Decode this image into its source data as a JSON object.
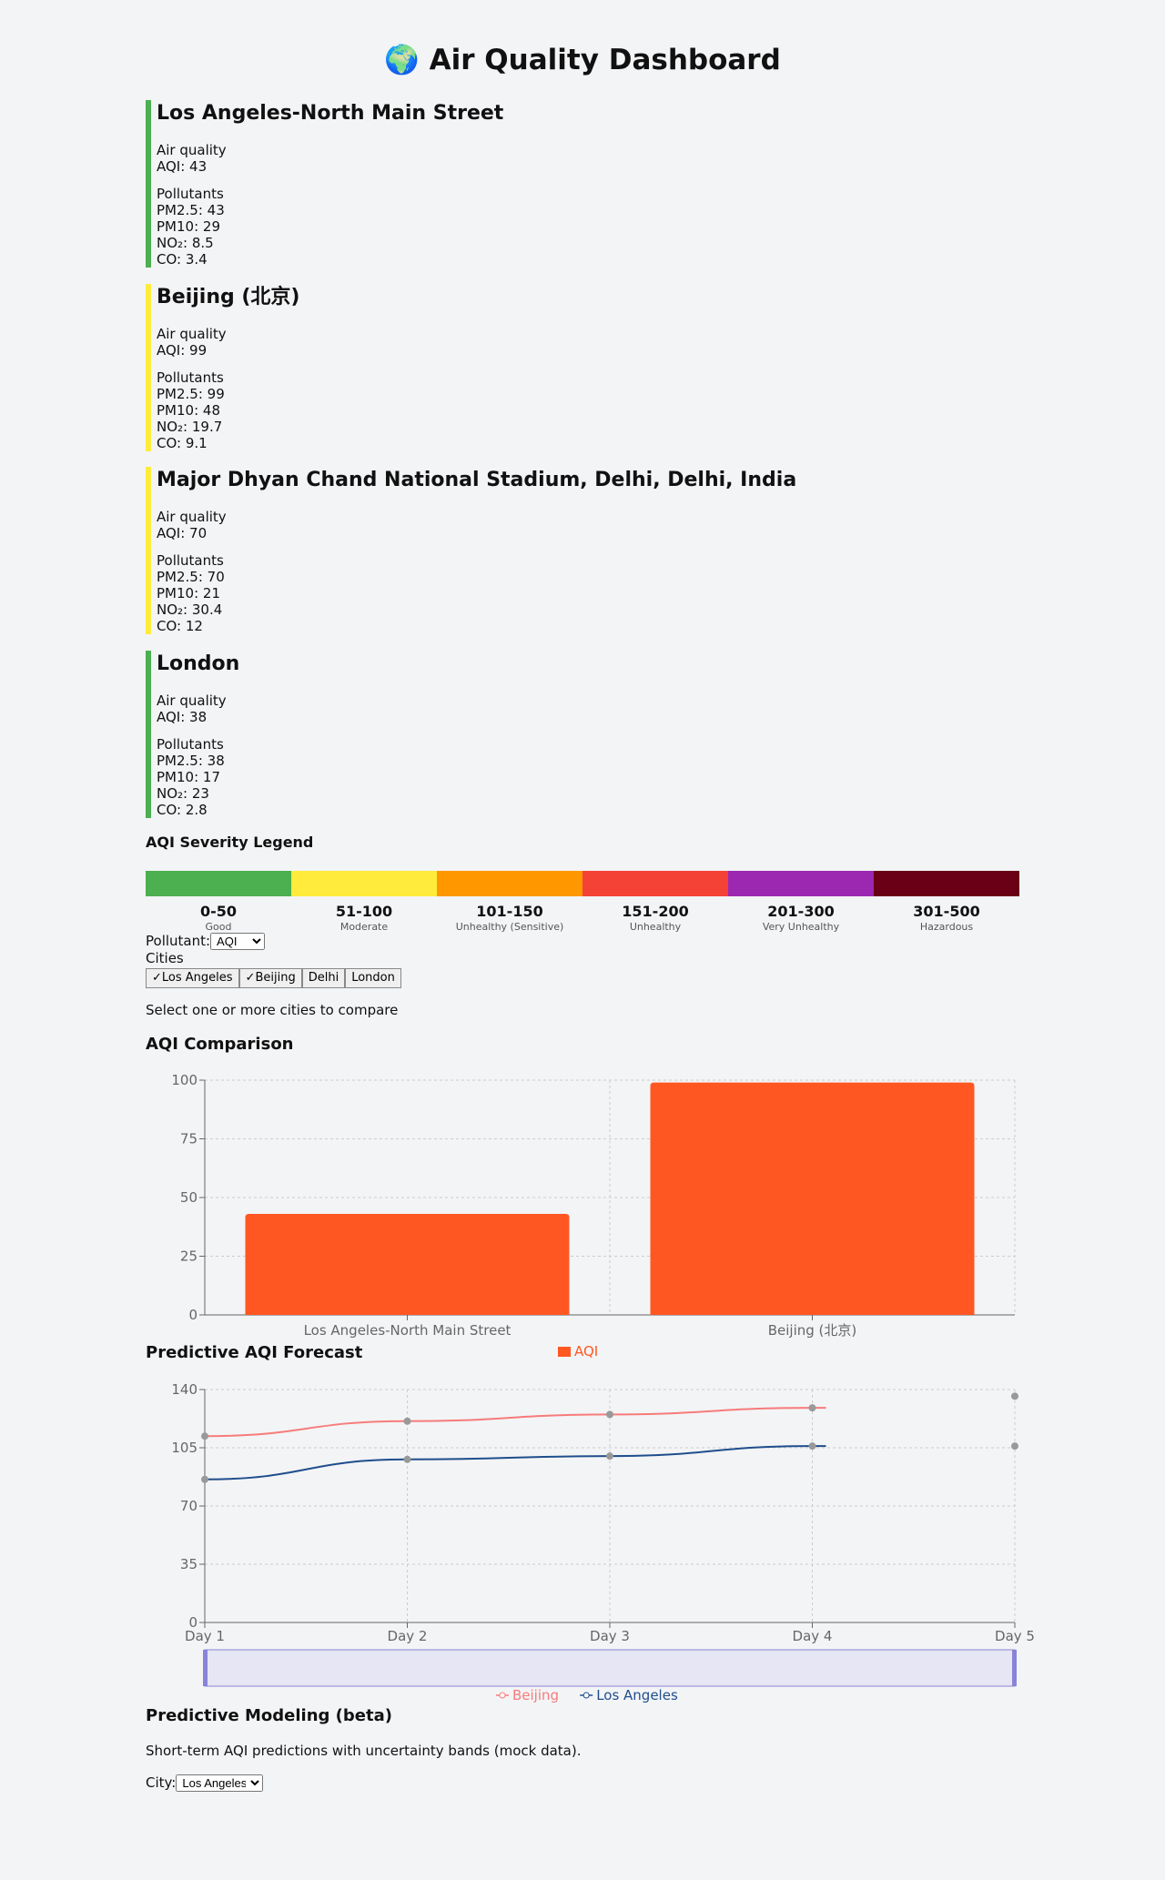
{
  "header": {
    "globe_icon": "🌍",
    "title": "Air Quality Dashboard"
  },
  "cities": [
    {
      "name": "Los Angeles-North Main Street",
      "border_color": "#4caf50",
      "air_quality_label": "Air quality",
      "aqi_text": "AQI: 43",
      "pollutants_label": "Pollutants",
      "pm25": "PM2.5: 43",
      "pm10": "PM10: 29",
      "no2": "NO₂: 8.5",
      "co": "CO: 3.4"
    },
    {
      "name": "Beijing (北京)",
      "border_color": "#ffeb3b",
      "air_quality_label": "Air quality",
      "aqi_text": "AQI: 99",
      "pollutants_label": "Pollutants",
      "pm25": "PM2.5: 99",
      "pm10": "PM10: 48",
      "no2": "NO₂: 19.7",
      "co": "CO: 9.1"
    },
    {
      "name": "Major Dhyan Chand National Stadium, Delhi, Delhi, India",
      "border_color": "#ffeb3b",
      "air_quality_label": "Air quality",
      "aqi_text": "AQI: 70",
      "pollutants_label": "Pollutants",
      "pm25": "PM2.5: 70",
      "pm10": "PM10: 21",
      "no2": "NO₂: 30.4",
      "co": "CO: 12"
    },
    {
      "name": "London",
      "border_color": "#4caf50",
      "air_quality_label": "Air quality",
      "aqi_text": "AQI: 38",
      "pollutants_label": "Pollutants",
      "pm25": "PM2.5: 38",
      "pm10": "PM10: 17",
      "no2": "NO₂: 23",
      "co": "CO: 2.8"
    }
  ],
  "legend": {
    "title": "AQI Severity Legend",
    "bands": [
      {
        "range": "0-50",
        "category": "Good",
        "color": "#4caf50"
      },
      {
        "range": "51-100",
        "category": "Moderate",
        "color": "#ffeb3b"
      },
      {
        "range": "101-150",
        "category": "Unhealthy (Sensitive)",
        "color": "#ff9800"
      },
      {
        "range": "151-200",
        "category": "Unhealthy",
        "color": "#f44336"
      },
      {
        "range": "201-300",
        "category": "Very Unhealthy",
        "color": "#9c27b0"
      },
      {
        "range": "301-500",
        "category": "Hazardous",
        "color": "#6a0016"
      }
    ]
  },
  "controls": {
    "pollutant_label": "Pollutant:",
    "pollutant_selected": "AQI",
    "cities_label": "Cities",
    "city_chips": [
      {
        "label": "Los Angeles",
        "checked": true
      },
      {
        "label": "Beijing",
        "checked": true
      },
      {
        "label": "Delhi",
        "checked": false
      },
      {
        "label": "London",
        "checked": false
      }
    ],
    "hint": "Select one or more cities to compare"
  },
  "comparison": {
    "title": "AQI Comparison",
    "legend_label": "AQI",
    "bar_color": "#ff5722"
  },
  "forecast": {
    "title": "Predictive AQI Forecast",
    "series_colors": {
      "Beijing": "#f77b7b",
      "Los Angeles": "#1f4e8c"
    }
  },
  "modeling": {
    "title": "Predictive Modeling (beta)",
    "description": "Short-term AQI predictions with uncertainty bands (mock data).",
    "city_label": "City:",
    "city_selected": "Los Angeles"
  },
  "chart_data": [
    {
      "type": "bar",
      "title": "AQI Comparison",
      "categories": [
        "Los Angeles-North Main Street",
        "Beijing (北京)"
      ],
      "series": [
        {
          "name": "AQI",
          "values": [
            43,
            99
          ]
        }
      ],
      "yticks": [
        "0",
        "25",
        "50",
        "75",
        "100"
      ],
      "ylim": [
        0,
        100
      ],
      "grid": true,
      "legend": "bottom-center"
    },
    {
      "type": "line",
      "title": "Predictive AQI Forecast",
      "x": [
        "Day 1",
        "Day 2",
        "Day 3",
        "Day 4",
        "Day 5"
      ],
      "series": [
        {
          "name": "Beijing",
          "values": [
            112,
            121,
            125,
            129,
            136
          ]
        },
        {
          "name": "Los Angeles",
          "values": [
            86,
            98,
            100,
            106,
            106
          ]
        }
      ],
      "yticks": [
        "0",
        "35",
        "70",
        "105",
        "140"
      ],
      "ylim": [
        0,
        140
      ],
      "grid": true,
      "legend": "bottom-center"
    }
  ]
}
